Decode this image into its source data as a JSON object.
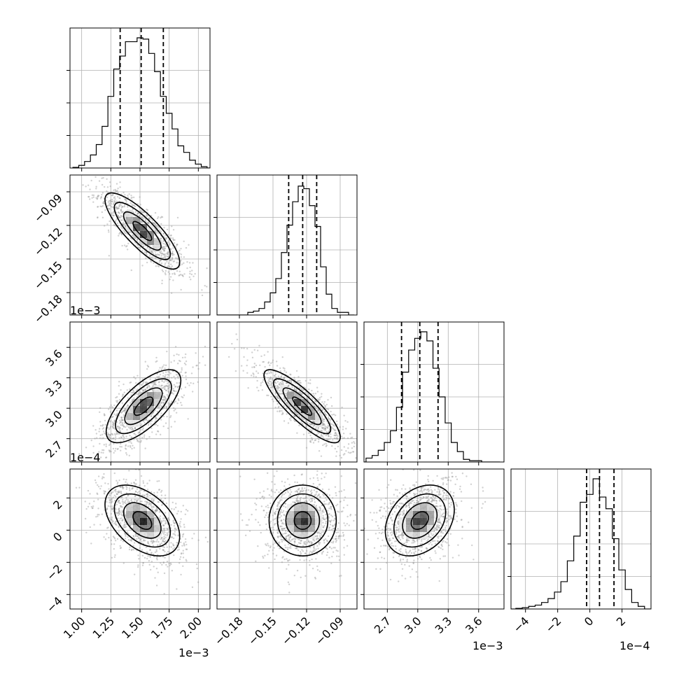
{
  "chart_data": {
    "type": "corner",
    "grid": true,
    "parameters": [
      {
        "ticks": [
          1.0,
          1.25,
          1.5,
          1.75,
          2.0
        ],
        "tick_labels": [
          "1.00",
          "1.25",
          "1.50",
          "1.75",
          "2.00"
        ],
        "range": [
          0.9,
          2.1
        ],
        "offset_label": "1e−3",
        "quantiles": [
          1.33,
          1.51,
          1.7
        ],
        "hist_x": [
          0.95,
          1.0,
          1.05,
          1.1,
          1.15,
          1.2,
          1.25,
          1.3,
          1.35,
          1.4,
          1.45,
          1.5,
          1.55,
          1.6,
          1.65,
          1.7,
          1.75,
          1.8,
          1.85,
          1.9,
          1.95,
          2.0,
          2.05,
          2.1
        ],
        "hist": [
          0.005,
          0.02,
          0.05,
          0.1,
          0.18,
          0.32,
          0.55,
          0.76,
          0.86,
          0.97,
          0.97,
          1.0,
          0.99,
          0.88,
          0.74,
          0.55,
          0.42,
          0.3,
          0.17,
          0.12,
          0.06,
          0.03,
          0.01,
          0.0
        ]
      },
      {
        "ticks": [
          -0.18,
          -0.15,
          -0.12,
          -0.09
        ],
        "tick_labels": [
          "−0.18",
          "−0.15",
          "−0.12",
          "−0.09"
        ],
        "range": [
          -0.2,
          -0.075
        ],
        "offset_label": "",
        "quantiles": [
          -0.136,
          -0.1235,
          -0.111
        ],
        "hist_x": [
          -0.2,
          -0.195,
          -0.19,
          -0.185,
          -0.18,
          -0.175,
          -0.17,
          -0.165,
          -0.16,
          -0.155,
          -0.15,
          -0.145,
          -0.14,
          -0.135,
          -0.13,
          -0.125,
          -0.12,
          -0.115,
          -0.11,
          -0.105,
          -0.1,
          -0.095,
          -0.09,
          -0.085,
          -0.08
        ],
        "hist": [
          0.0,
          0.0,
          0.0,
          0.0,
          0.0,
          0.0,
          0.02,
          0.03,
          0.05,
          0.1,
          0.17,
          0.28,
          0.48,
          0.69,
          0.87,
          0.99,
          0.97,
          0.84,
          0.68,
          0.37,
          0.16,
          0.05,
          0.02,
          0.02,
          0.0
        ]
      },
      {
        "ticks": [
          2.7,
          3.0,
          3.3,
          3.6
        ],
        "tick_labels": [
          "2.7",
          "3.0",
          "3.3",
          "3.6"
        ],
        "range": [
          2.47,
          3.85
        ],
        "offset_label": "1e−3",
        "quantiles": [
          2.84,
          3.02,
          3.2
        ],
        "hist_x": [
          2.46,
          2.52,
          2.58,
          2.64,
          2.7,
          2.76,
          2.82,
          2.88,
          2.94,
          3.0,
          3.06,
          3.12,
          3.18,
          3.24,
          3.3,
          3.36,
          3.42,
          3.48,
          3.54,
          3.6,
          3.66,
          3.72,
          3.78
        ],
        "hist": [
          0.0,
          0.03,
          0.05,
          0.09,
          0.15,
          0.24,
          0.42,
          0.69,
          0.86,
          0.95,
          1.0,
          0.93,
          0.72,
          0.5,
          0.3,
          0.15,
          0.08,
          0.02,
          0.01,
          0.01,
          0.0,
          0.0,
          0.0
        ],
        "y_ticks": [
          2.7,
          3.0,
          3.3,
          3.6
        ],
        "y_tick_labels": [
          "2.7",
          "3.0",
          "3.3",
          "3.6"
        ],
        "y_offset_label": "1e−3"
      },
      {
        "ticks": [
          -4,
          -2,
          0,
          2
        ],
        "tick_labels": [
          "−4",
          "−2",
          "0",
          "2"
        ],
        "range": [
          -4.9,
          3.8
        ],
        "offset_label": "1e−4",
        "quantiles": [
          -0.2,
          0.6,
          1.5
        ],
        "hist_x": [
          -4.8,
          -4.4,
          -4.0,
          -3.6,
          -3.2,
          -2.8,
          -2.4,
          -2.0,
          -1.6,
          -1.2,
          -0.8,
          -0.4,
          0.0,
          0.4,
          0.8,
          1.2,
          1.6,
          2.0,
          2.4,
          2.8,
          3.2,
          3.6
        ],
        "hist": [
          0.0,
          0.005,
          0.01,
          0.02,
          0.03,
          0.05,
          0.08,
          0.13,
          0.21,
          0.37,
          0.56,
          0.82,
          0.88,
          1.0,
          0.86,
          0.77,
          0.54,
          0.3,
          0.15,
          0.05,
          0.02,
          0.0
        ]
      }
    ],
    "y_axis_labels_row1": [
      "−0.09",
      "−0.12",
      "−0.15",
      "−0.18"
    ],
    "y_axis_labels_row2": [
      "3.6",
      "3.3",
      "3.0",
      "2.7"
    ],
    "y_axis_labels_row3": [
      "2",
      "0",
      "−2",
      "−4"
    ],
    "pairs": [
      {
        "row": 1,
        "col": 0,
        "center": [
          1.52,
          -0.125
        ],
        "sd": [
          0.16,
          0.017
        ],
        "rho": -0.82
      },
      {
        "row": 2,
        "col": 0,
        "center": [
          1.53,
          3.02
        ],
        "sd": [
          0.16,
          0.18
        ],
        "rho": 0.7
      },
      {
        "row": 2,
        "col": 1,
        "center": [
          -0.124,
          3.02
        ],
        "sd": [
          0.017,
          0.18
        ],
        "rho": -0.85
      },
      {
        "row": 3,
        "col": 0,
        "center": [
          1.52,
          0.6
        ],
        "sd": [
          0.16,
          1.1
        ],
        "rho": -0.45
      },
      {
        "row": 3,
        "col": 1,
        "center": [
          -0.1235,
          0.6
        ],
        "sd": [
          0.015,
          1.1
        ],
        "rho": 0.0
      },
      {
        "row": 3,
        "col": 2,
        "center": [
          3.02,
          0.6
        ],
        "sd": [
          0.17,
          1.1
        ],
        "rho": 0.3
      }
    ],
    "contour_levels": [
      0.5,
      1.0,
      1.5,
      2.0
    ],
    "line_color": "#000000",
    "scatter_color": "#9a9a9a",
    "grid_color": "#b0b0b0"
  }
}
